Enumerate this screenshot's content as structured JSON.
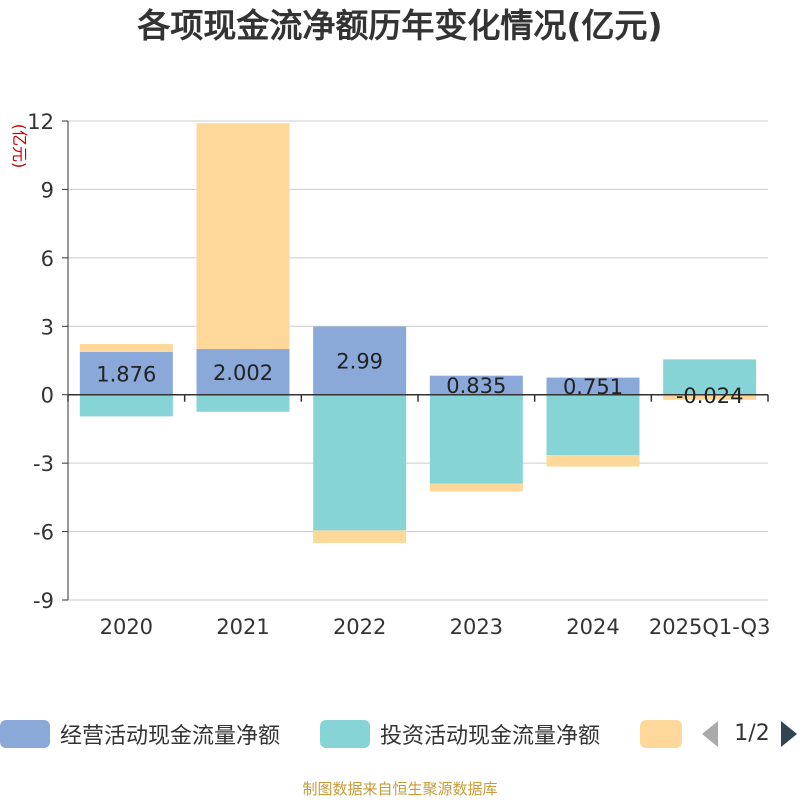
{
  "chart_data": {
    "type": "bar",
    "stacked": true,
    "title": "各项现金流净额历年变化情况(亿元)",
    "ylabel": "(亿元)",
    "xlabel": "",
    "ylim": [
      -9,
      12
    ],
    "yticks": [
      12,
      9,
      6,
      3,
      0,
      -3,
      -6,
      -9
    ],
    "categories": [
      "2020",
      "2021",
      "2022",
      "2023",
      "2024",
      "2025Q1-Q3"
    ],
    "series": [
      {
        "name": "经营活动现金流量净额",
        "color": "#8aa8d8",
        "values": [
          1.876,
          2.002,
          2.99,
          0.835,
          0.751,
          -0.024
        ],
        "labels": [
          "1.876",
          "2.002",
          "2.99",
          "0.835",
          "0.751",
          "-0.024"
        ]
      },
      {
        "name": "投资活动现金流量净额",
        "color": "#86d4d6",
        "values": [
          -0.95,
          -0.75,
          -5.95,
          -3.9,
          -2.65,
          1.55
        ]
      },
      {
        "name": "",
        "color": "#fdd89a",
        "values": [
          0.35,
          9.9,
          -0.55,
          -0.35,
          -0.5,
          -0.2
        ]
      }
    ],
    "grid": true
  },
  "legend": {
    "page_indicator": "1/2"
  },
  "source_note": "制图数据来自恒生聚源数据库"
}
